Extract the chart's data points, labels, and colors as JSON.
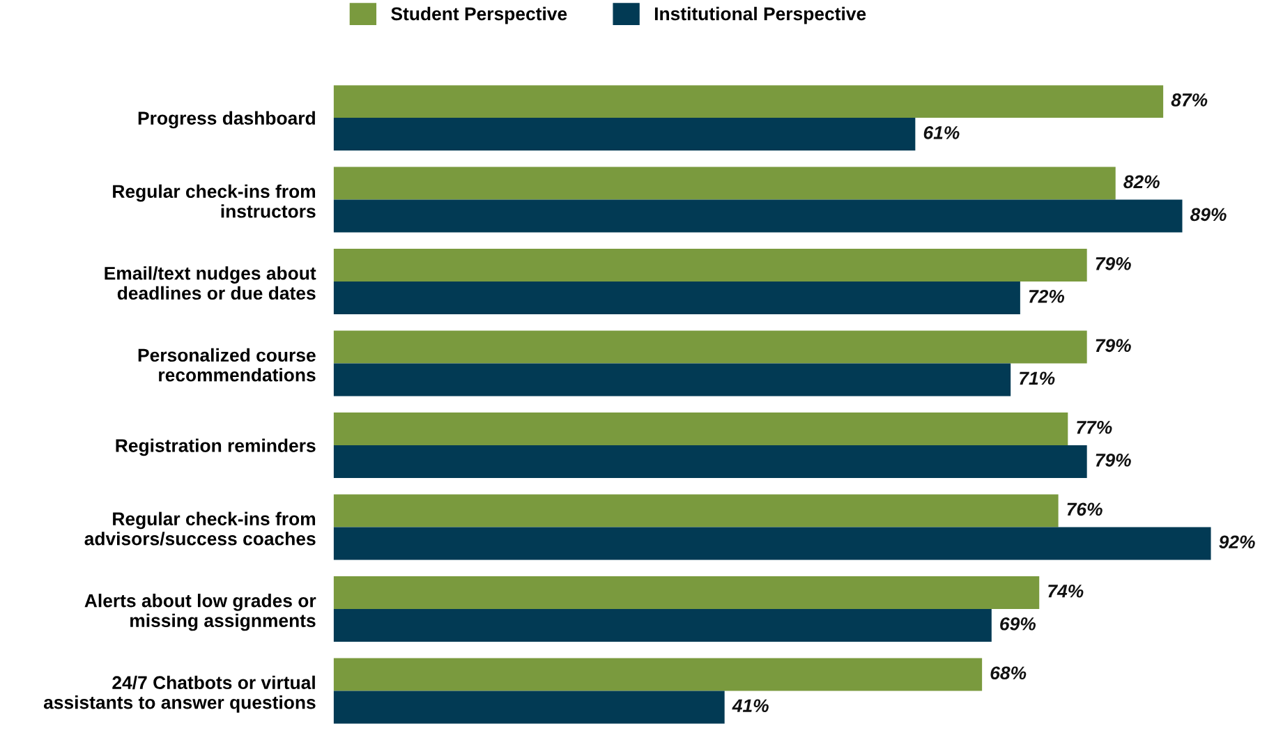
{
  "chart_data": {
    "type": "bar",
    "orientation": "horizontal",
    "categories": [
      "Progress dashboard",
      "Regular check-ins from\ninstructors",
      "Email/text nudges about\ndeadlines or due dates",
      "Personalized course\nrecommendations",
      "Registration reminders",
      "Regular check-ins from\nadvisors/success coaches",
      "Alerts about low grades or\nmissing assignments",
      "24/7 Chatbots or virtual\nassistants to answer questions"
    ],
    "series": [
      {
        "name": "Student Perspective",
        "color": "#7a9a3e",
        "values": [
          87,
          82,
          79,
          79,
          77,
          76,
          74,
          68
        ],
        "value_labels": [
          "87%",
          "82%",
          "79%",
          "79%",
          "77%",
          "76%",
          "74%",
          "68%"
        ]
      },
      {
        "name": "Institutional Perspective",
        "color": "#023a54",
        "values": [
          61,
          89,
          72,
          71,
          79,
          92,
          69,
          41
        ],
        "value_labels": [
          "61%",
          "89%",
          "72%",
          "71%",
          "79%",
          "92%",
          "69%",
          "41%"
        ]
      }
    ],
    "tick_labels": "y",
    "grid": false,
    "legend": "top"
  }
}
